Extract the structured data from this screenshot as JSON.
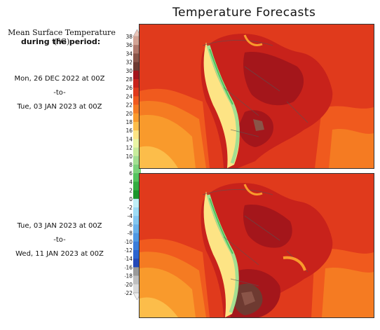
{
  "title": "Temperature Forecasts",
  "legend": {
    "title": "Mean Surface Temperature (°C)",
    "subtitle": "during the period:",
    "ticks": [
      "38",
      "36",
      "34",
      "32",
      "30",
      "28",
      "26",
      "24",
      "22",
      "20",
      "18",
      "16",
      "14",
      "12",
      "10",
      "8",
      "6",
      "4",
      "2",
      "0",
      "-2",
      "-4",
      "-6",
      "-8",
      "-10",
      "-12",
      "-14",
      "-16",
      "-18",
      "-20",
      "-22"
    ],
    "colors": [
      "#e9c4b8",
      "#d2a394",
      "#b0786b",
      "#8a5448",
      "#6e3a31",
      "#a4161b",
      "#c8221b",
      "#e03a1c",
      "#f05a1e",
      "#f57b22",
      "#f99a2c",
      "#fcbd4a",
      "#fde485",
      "#e9f5a4",
      "#c8ec9c",
      "#a3df91",
      "#7bd27a",
      "#53c35d",
      "#33ad41",
      "#1c962c",
      "#bfeef6",
      "#9edcf5",
      "#84c7f0",
      "#6ab1ea",
      "#4f98e2",
      "#3a7dd9",
      "#2b64cf",
      "#2449b8",
      "#9a9a9a",
      "#bfbfbf",
      "#dadada",
      "#eeeeee"
    ]
  },
  "periods": [
    {
      "start": "Mon, 26 DEC 2022 at 00Z",
      "sep": "-to-",
      "end": "Tue, 03 JAN 2023 at 00Z"
    },
    {
      "start": "Tue, 03 JAN 2023 at 00Z",
      "sep": "-to-",
      "end": "Wed, 11 JAN 2023 at 00Z"
    }
  ],
  "maps": [
    {
      "name": "forecast-map-period-1",
      "highland_hotspot": "gran-chaco"
    },
    {
      "name": "forecast-map-period-2",
      "highland_hotspot": "southern-cone"
    }
  ]
}
